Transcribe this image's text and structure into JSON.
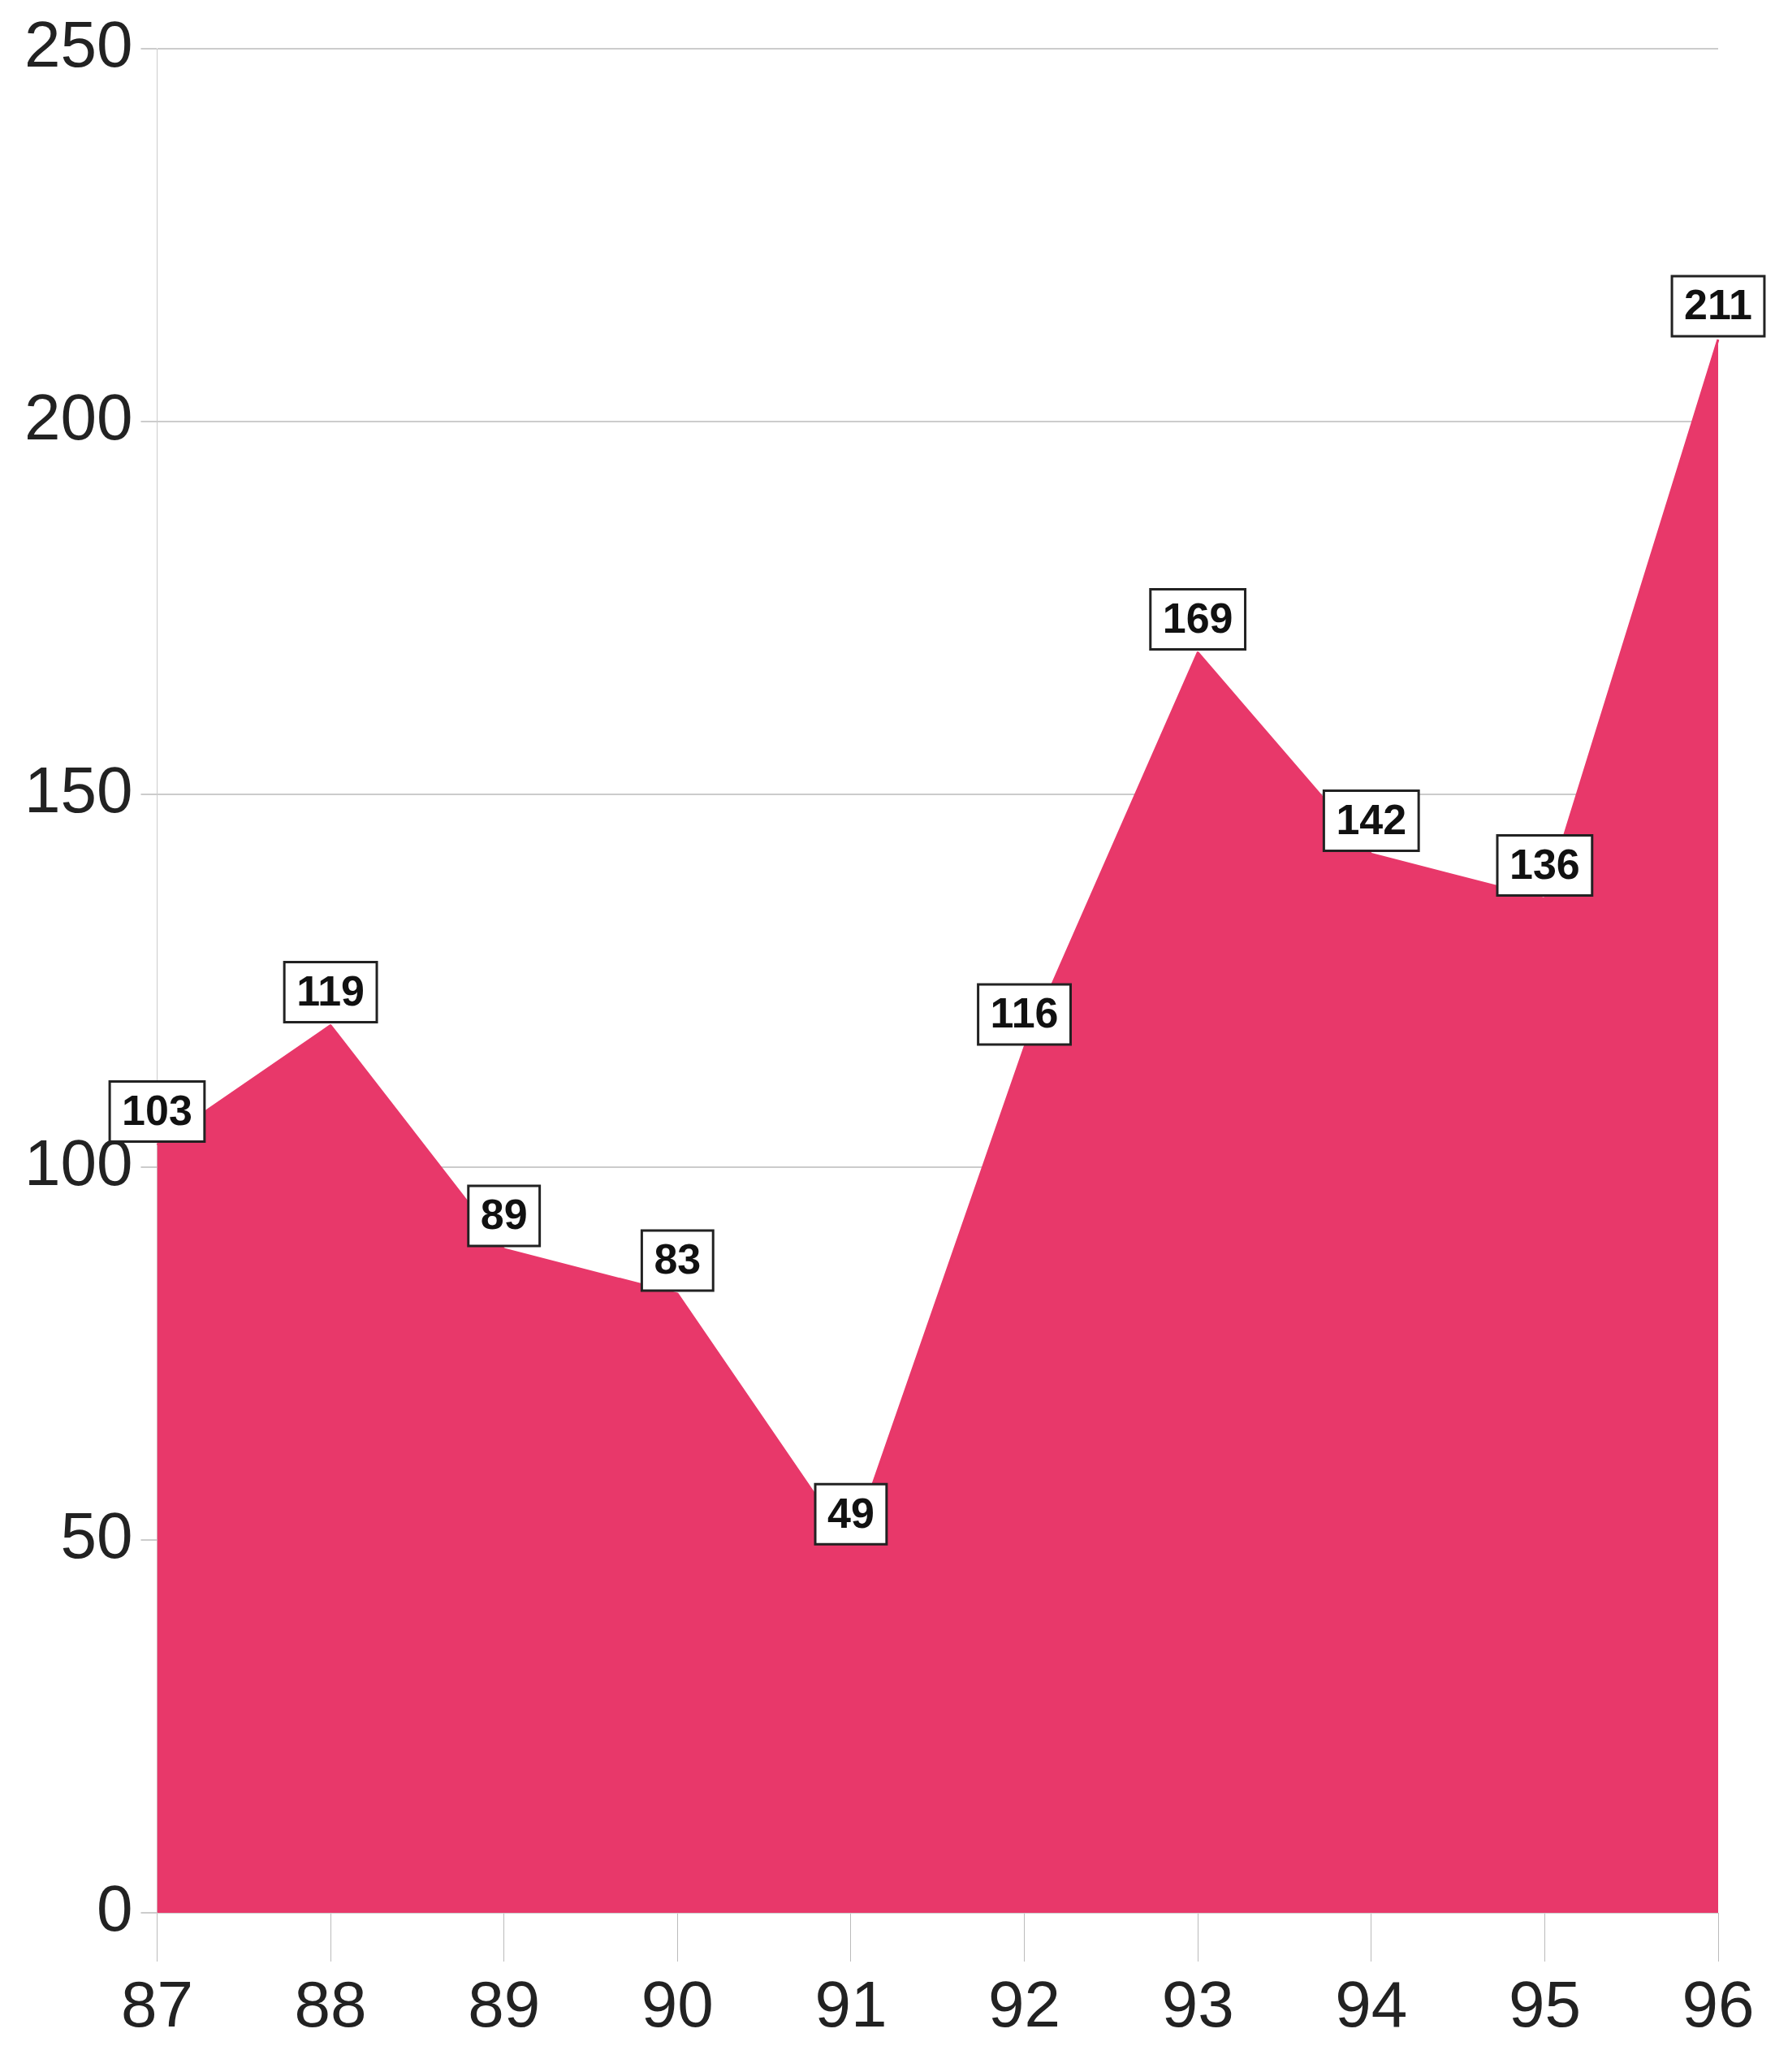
{
  "chart_data": {
    "type": "area",
    "categories": [
      "87",
      "88",
      "89",
      "90",
      "91",
      "92",
      "93",
      "94",
      "95",
      "96"
    ],
    "values": [
      103,
      119,
      89,
      83,
      49,
      116,
      169,
      142,
      136,
      211
    ],
    "color": "#e8386a",
    "ylim": [
      0,
      250
    ],
    "yticks": [
      0,
      50,
      100,
      150,
      200,
      250
    ],
    "grid": "y",
    "legend": false,
    "marker": "none",
    "data_labels": true
  }
}
